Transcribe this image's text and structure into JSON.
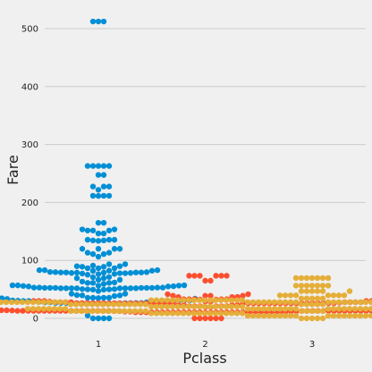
{
  "chart_data": {
    "type": "scatter",
    "subtype": "swarm",
    "xlabel": "Pclass",
    "ylabel": "Fare",
    "categories": [
      "1",
      "2",
      "3"
    ],
    "ylim": [
      -20,
      530
    ],
    "yticks": [
      0,
      100,
      200,
      300,
      400,
      500
    ],
    "grid": "horizontal",
    "colors": [
      "#008fd5",
      "#fc4f30",
      "#e5ae38"
    ],
    "background": "#f0f0f0",
    "grid_color": "#cbcbcb",
    "series": [
      {
        "category": "1",
        "values": [
          512.3,
          512.3,
          512.3,
          263,
          263,
          263,
          263,
          263,
          247.5,
          247.5,
          227.5,
          227.5,
          227.5,
          221.8,
          211.5,
          211.5,
          211.5,
          211.3,
          164.9,
          164.9,
          153.5,
          153.5,
          151.6,
          151.6,
          151.6,
          146.5,
          146.5,
          135.6,
          135.6,
          135.6,
          134.5,
          134.5,
          133.7,
          120,
          120,
          120,
          120,
          113.3,
          113.3,
          110.9,
          110.9,
          106.4,
          93.5,
          93.5,
          91.1,
          90,
          90,
          89.1,
          89.1,
          86.5,
          86.5,
          86.5,
          83.2,
          83.2,
          83.2,
          82.2,
          82.2,
          81.9,
          80,
          79.7,
          79.7,
          79.2,
          79.2,
          79.2,
          79.2,
          78.9,
          78.9,
          78.3,
          78.3,
          77.9,
          77.9,
          77.3,
          76.7,
          76.3,
          75.3,
          71.3,
          71,
          69.3,
          69.3,
          66.6,
          66.6,
          63.4,
          61.9,
          61.2,
          61.2,
          61.2,
          59.4,
          57,
          57,
          56.9,
          56.5,
          56.5,
          55.9,
          55.4,
          55,
          55,
          53.1,
          53.1,
          53.1,
          53.1,
          52.6,
          52.6,
          52.6,
          52.6,
          52.6,
          52.6,
          52,
          52,
          52,
          52,
          51.9,
          51.9,
          51.9,
          51.9,
          50.5,
          50.5,
          50,
          50,
          49.5,
          49.5,
          47.1,
          42.4,
          42.4,
          40.1,
          39.6,
          39.6,
          38.5,
          35.5,
          35.5,
          35.5,
          35.5,
          35,
          34.7,
          34,
          33.5,
          31,
          31,
          30.7,
          30.5,
          30.5,
          30,
          30,
          30,
          29.7,
          29.7,
          29.7,
          28.5,
          27.7,
          27.7,
          27.7,
          27.7,
          27.7,
          26.6,
          26.6,
          26.6,
          26.6,
          26.6,
          26.3,
          26.3,
          26.3,
          26,
          26,
          26,
          26,
          26,
          25.9,
          25.9,
          25.9,
          25.6,
          5,
          0,
          0,
          0,
          0
        ]
      },
      {
        "category": "2",
        "values": [
          73.5,
          73.5,
          73.5,
          73.5,
          73.5,
          73.5,
          65,
          65,
          41.6,
          41.6,
          39,
          39,
          39,
          39,
          37,
          36.8,
          36.8,
          33,
          33,
          33,
          33,
          33,
          32.5,
          32.5,
          30,
          30,
          30,
          30,
          30,
          30,
          30,
          29,
          29,
          29,
          27.8,
          27.8,
          27.8,
          27.8,
          27.8,
          27.8,
          27.8,
          27.8,
          27,
          26.3,
          26.3,
          26.3,
          26.3,
          26.3,
          26.3,
          26.3,
          26.3,
          26.3,
          26.3,
          26.2,
          26.2,
          26,
          26,
          26,
          26,
          26,
          26,
          26,
          26,
          26,
          26,
          26,
          26,
          26,
          26,
          26,
          26,
          26,
          26,
          26,
          26,
          26,
          26,
          26,
          26,
          26,
          23,
          23,
          23,
          23,
          21,
          21,
          21,
          21,
          21,
          21,
          19.5,
          19.5,
          18.8,
          18.8,
          18.8,
          18.8,
          16,
          15.8,
          15.8,
          15.8,
          15.8,
          15.5,
          15.1,
          15.1,
          15,
          15,
          14.5,
          14.5,
          14,
          13.9,
          13.9,
          13.8,
          13.5,
          13.5,
          13,
          13,
          13,
          13,
          13,
          13,
          13,
          13,
          13,
          13,
          13,
          13,
          13,
          13,
          13,
          13,
          13,
          13,
          13,
          13,
          13,
          13,
          13,
          13,
          13,
          13,
          13,
          13,
          13,
          13,
          13,
          13,
          13,
          13,
          13,
          12.7,
          12.6,
          12.4,
          12.4,
          11.5,
          11.5,
          11.5,
          11.5,
          10.5,
          10.5,
          10.5,
          10.5,
          10.5,
          10.5,
          10.5,
          10.5,
          10.5,
          10.5,
          10.5,
          10.5,
          10.5,
          10.5,
          10.5,
          10.5,
          10.5,
          10.5,
          10.5,
          10.5,
          10.5,
          10.5,
          10.5,
          10.5,
          10.5,
          10.5,
          10,
          10,
          0,
          0,
          0,
          0,
          0,
          0
        ]
      },
      {
        "category": "3",
        "values": [
          69.6,
          69.6,
          69.6,
          69.6,
          69.6,
          69.6,
          69.6,
          56.5,
          56.5,
          56.5,
          56.5,
          56.5,
          56.5,
          56.5,
          46.9,
          46.9,
          46.9,
          46.9,
          46.9,
          46.9,
          39.7,
          39.7,
          39.7,
          39.7,
          39.7,
          39.7,
          39.7,
          39.7,
          34.4,
          34.4,
          34.4,
          34.4,
          34.4,
          34.4,
          31.4,
          31.4,
          31.4,
          31.4,
          31.3,
          31.3,
          31.3,
          31.3,
          31.3,
          31.3,
          31.3,
          31.3,
          31.3,
          31.3,
          31.3,
          31.3,
          31.3,
          31.3,
          31.3,
          31.3,
          31.3,
          31.3,
          31.3,
          31.3,
          31.3,
          31.3,
          31.3,
          31.3,
          31.3,
          31.3,
          31.3,
          31.3,
          31.3,
          31.3,
          31.3,
          31.3,
          31.3,
          31.3,
          27.9,
          27.9,
          27.9,
          27.9,
          27.9,
          27.9,
          27.9,
          27.9,
          27.9,
          27.9,
          27.9,
          27.9,
          27.9,
          27.9,
          27.9,
          27.9,
          27.9,
          27.9,
          27.9,
          27.9,
          27.9,
          27.9,
          27.9,
          27.9,
          27.9,
          27.9,
          27.9,
          27.9,
          27.9,
          27.9,
          27.9,
          27.9,
          27.9,
          27.9,
          27.9,
          27.9,
          27.9,
          27.9,
          27.9,
          27.9,
          27.9,
          27.9,
          27.9,
          27.9,
          27.9,
          27.9,
          24.2,
          24.2,
          24.2,
          24.2,
          24.2,
          24.2,
          24.2,
          24.2,
          24.2,
          24.2,
          24.2,
          24.2,
          24.2,
          24.2,
          24.2,
          24.2,
          24.2,
          24.2,
          24.2,
          24.2,
          24.2,
          24.2,
          24.2,
          24.2,
          24.2,
          24.2,
          24.2,
          24.2,
          24.2,
          24.2,
          24.2,
          24.2,
          24.2,
          24.2,
          24.2,
          24.2,
          20.3,
          20.3,
          20.3,
          20.3,
          20.3,
          20.3,
          20.3,
          20.3,
          20.3,
          20.3,
          20.3,
          20.3,
          20.3,
          20.3,
          20.3,
          20.3,
          20.3,
          20.3,
          20.3,
          20.3,
          20.3,
          20.3,
          20.3,
          20.3,
          20.3,
          20.3,
          20.3,
          20.3,
          20.3,
          20.3,
          20.3,
          20.3,
          20.3,
          20.3,
          20.3,
          20.3,
          16.5,
          16.5,
          16.5,
          16.5,
          16.5,
          16.5,
          16.5,
          16.5,
          16.5,
          16.5,
          16.5,
          16.5,
          16.5,
          16.5,
          16.5,
          16.5,
          16.5,
          16.5,
          16.5,
          16.5,
          16.5,
          16.5,
          16.5,
          16.5,
          16.5,
          16.5,
          16.5,
          16.5,
          16.5,
          16.5,
          16.5,
          16.5,
          16.5,
          16.5,
          16.5,
          16.5,
          12.6,
          12.6,
          12.6,
          12.6,
          12.6,
          12.6,
          12.6,
          12.6,
          12.6,
          12.6,
          12.6,
          12.6,
          12.6,
          12.6,
          12.6,
          12.6,
          12.6,
          12.6,
          12.6,
          12.6,
          12.6,
          12.6,
          12.6,
          12.6,
          12.6,
          12.6,
          12.6,
          12.6,
          12.6,
          12.6,
          12.6,
          12.6,
          12.6,
          12.6,
          12.6,
          12.6,
          8.7,
          8.7,
          8.7,
          8.7,
          8.7,
          8.7,
          8.7,
          8.7,
          8.7,
          8.7,
          8.7,
          8.7,
          8.7,
          8.7,
          8.7,
          8.7,
          8.7,
          8.7,
          8.7,
          8.7,
          8.7,
          8.7,
          8.7,
          8.7,
          8.7,
          8.7,
          8.7,
          8.7,
          8.7,
          8.7,
          8.7,
          8.7,
          8.7,
          8.7,
          8.7,
          8.7,
          4.5,
          4.5,
          4.5,
          4.5,
          4.5,
          4.5,
          4.5,
          4.5,
          4.5,
          4.5,
          4.5,
          4.5,
          4.5,
          4.5,
          4.5,
          4.5,
          4.5,
          4.5,
          4.5,
          4.5,
          0,
          0,
          0,
          0,
          0
        ]
      }
    ]
  }
}
